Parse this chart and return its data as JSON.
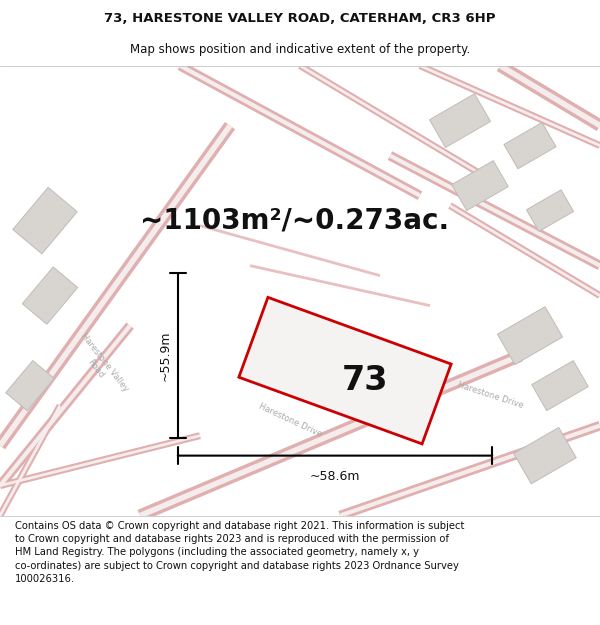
{
  "title_line1": "73, HARESTONE VALLEY ROAD, CATERHAM, CR3 6HP",
  "title_line2": "Map shows position and indicative extent of the property.",
  "area_text": "~1103m²/~0.273ac.",
  "label_number": "73",
  "dim_width": "~58.6m",
  "dim_height": "~55.9m",
  "footer_text": "Contains OS data © Crown copyright and database right 2021. This information is subject to Crown copyright and database rights 2023 and is reproduced with the permission of HM Land Registry. The polygons (including the associated geometry, namely x, y co-ordinates) are subject to Crown copyright and database rights 2023 Ordnance Survey 100026316.",
  "bg_color": "#f0eeee",
  "road_outer": "#e0b0b0",
  "road_inner": "#f5eded",
  "road_thin": "#e8c0c0",
  "building_face": "#d8d4d0",
  "building_edge": "#c0bcb8",
  "property_edge": "#cc0000",
  "property_fill": "#f5f2f2",
  "text_color": "#111111",
  "road_label_color": "#aaaaaa",
  "title_fontsize": 9.5,
  "subtitle_fontsize": 8.5,
  "area_fontsize": 20,
  "label_fontsize": 24,
  "dim_fontsize": 9,
  "footer_fontsize": 7.2
}
